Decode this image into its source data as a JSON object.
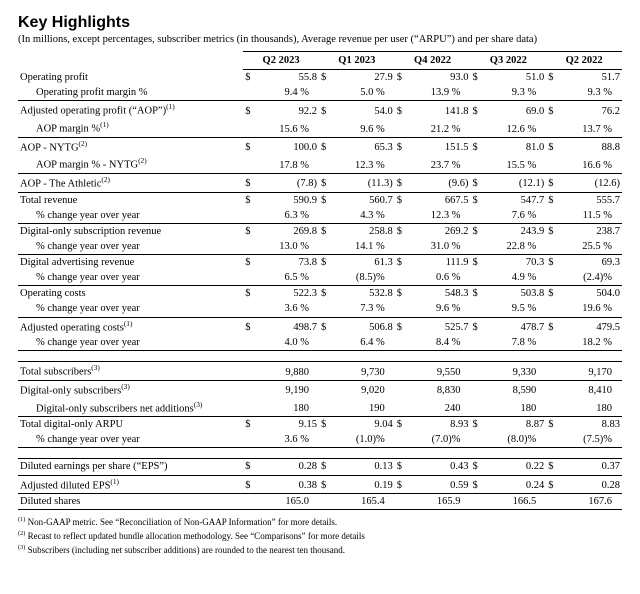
{
  "heading": "Key Highlights",
  "subhead": "(In millions, except percentages, subscriber metrics (in thousands), Average revenue per user (“ARPU”) and per share data)",
  "periods": [
    "Q2 2023",
    "Q1 2023",
    "Q4 2022",
    "Q3 2022",
    "Q2 2022"
  ],
  "currency": "$",
  "rows": {
    "op_profit": {
      "label": "Operating profit",
      "vals": [
        "55.8",
        "27.9",
        "93.0",
        "51.0",
        "51.7"
      ],
      "cur": true
    },
    "op_profit_m": {
      "label": "Operating profit margin %",
      "vals": [
        "9.4 %",
        "5.0 %",
        "13.9 %",
        "9.3 %",
        "9.3 %"
      ]
    },
    "aop": {
      "label": "Adjusted operating profit (“AOP”)",
      "sup": "(1)",
      "vals": [
        "92.2",
        "54.0",
        "141.8",
        "69.0",
        "76.2"
      ],
      "cur": true
    },
    "aop_m": {
      "label": "AOP margin %",
      "sup": "(1)",
      "vals": [
        "15.6 %",
        "9.6 %",
        "21.2 %",
        "12.6 %",
        "13.7 %"
      ]
    },
    "aop_nytg": {
      "label": "AOP - NYTG",
      "sup": "(2)",
      "vals": [
        "100.0",
        "65.3",
        "151.5",
        "81.0",
        "88.8"
      ],
      "cur": true
    },
    "aop_nytg_m": {
      "label": "AOP margin % - NYTG",
      "sup": "(2)",
      "vals": [
        "17.8 %",
        "12.3 %",
        "23.7 %",
        "15.5 %",
        "16.6 %"
      ]
    },
    "aop_ath": {
      "label": "AOP - The Athletic",
      "sup": "(2)",
      "vals": [
        "(7.8)",
        "(11.3)",
        "(9.6)",
        "(12.1)",
        "(12.6)"
      ],
      "cur": true
    },
    "tot_rev": {
      "label": "Total revenue",
      "vals": [
        "590.9",
        "560.7",
        "667.5",
        "547.7",
        "555.7"
      ],
      "cur": true
    },
    "tot_rev_chg": {
      "label": "% change year over year",
      "vals": [
        "6.3 %",
        "4.3 %",
        "12.3 %",
        "7.6 %",
        "11.5 %"
      ]
    },
    "dig_sub_rev": {
      "label": "Digital-only subscription revenue",
      "vals": [
        "269.8",
        "258.8",
        "269.2",
        "243.9",
        "238.7"
      ],
      "cur": true
    },
    "dig_sub_rev_chg": {
      "label": "% change year over year",
      "vals": [
        "13.0 %",
        "14.1 %",
        "31.0 %",
        "22.8 %",
        "25.5 %"
      ]
    },
    "dig_adv_rev": {
      "label": "Digital advertising revenue",
      "vals": [
        "73.8",
        "61.3",
        "111.9",
        "70.3",
        "69.3"
      ],
      "cur": true
    },
    "dig_adv_rev_chg": {
      "label": "% change year over year",
      "vals": [
        "6.5 %",
        "(8.5)%",
        "0.6 %",
        "4.9 %",
        "(2.4)%"
      ]
    },
    "op_costs": {
      "label": "Operating costs",
      "vals": [
        "522.3",
        "532.8",
        "548.3",
        "503.8",
        "504.0"
      ],
      "cur": true
    },
    "op_costs_chg": {
      "label": "% change year over year",
      "vals": [
        "3.6 %",
        "7.3 %",
        "9.6 %",
        "9.5 %",
        "19.6 %"
      ]
    },
    "adj_costs": {
      "label": "Adjusted operating costs",
      "sup": "(1)",
      "vals": [
        "498.7",
        "506.8",
        "525.7",
        "478.7",
        "479.5"
      ],
      "cur": true
    },
    "adj_costs_chg": {
      "label": "% change year over year",
      "vals": [
        "4.0 %",
        "6.4 %",
        "8.4 %",
        "7.8 %",
        "18.2 %"
      ]
    },
    "tot_subs": {
      "label": "Total subscribers",
      "sup": "(3)",
      "vals": [
        "9,880",
        "9,730",
        "9,550",
        "9,330",
        "9,170"
      ]
    },
    "dig_subs": {
      "label": "Digital-only subscribers",
      "sup": "(3)",
      "vals": [
        "9,190",
        "9,020",
        "8,830",
        "8,590",
        "8,410"
      ]
    },
    "dig_subs_add": {
      "label": "Digital-only subscribers net additions",
      "sup": "(3)",
      "vals": [
        "180",
        "190",
        "240",
        "180",
        "180"
      ]
    },
    "arpu": {
      "label": "Total digital-only ARPU",
      "vals": [
        "9.15",
        "9.04",
        "8.93",
        "8.87",
        "8.83"
      ],
      "cur": true
    },
    "arpu_chg": {
      "label": "% change year over year",
      "vals": [
        "3.6 %",
        "(1.0)%",
        "(7.0)%",
        "(8.0)%",
        "(7.5)%"
      ]
    },
    "eps": {
      "label": "Diluted earnings per share (“EPS”)",
      "vals": [
        "0.28",
        "0.13",
        "0.43",
        "0.22",
        "0.37"
      ],
      "cur": true
    },
    "adj_eps": {
      "label": "Adjusted diluted EPS",
      "sup": "(1)",
      "vals": [
        "0.38",
        "0.19",
        "0.59",
        "0.24",
        "0.28"
      ],
      "cur": true
    },
    "dil_sh": {
      "label": "Diluted shares",
      "vals": [
        "165.0",
        "165.4",
        "165.9",
        "166.5",
        "167.6"
      ]
    }
  },
  "footnotes": [
    "Non-GAAP metric. See “Reconciliation of Non-GAAP Information” for more details.",
    "Recast to reflect updated bundle allocation methodology. See “Comparisons” for more details",
    "Subscribers (including net subscriber additions) are rounded to the nearest ten thousand."
  ],
  "fn_marks": [
    "(1)",
    "(2)",
    "(3)"
  ],
  "colors": {
    "text": "#000000",
    "background": "#ffffff",
    "rule": "#000000"
  },
  "fonts": {
    "heading_family": "Arial",
    "body_family": "Times New Roman",
    "heading_size_pt": 16,
    "body_size_pt": 10.5,
    "footnote_size_pt": 9
  }
}
